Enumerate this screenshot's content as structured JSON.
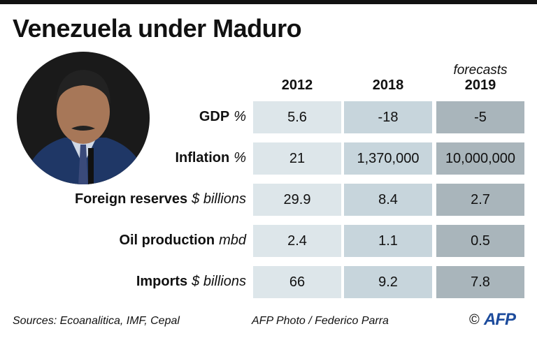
{
  "title": "Venezuela under Maduro",
  "table": {
    "note": "forecasts",
    "columns": [
      "2012",
      "2018",
      "2019"
    ],
    "rows": [
      {
        "label": "GDP",
        "unit": "%",
        "values": [
          "5.6",
          "-18",
          "-5"
        ]
      },
      {
        "label": "Inflation",
        "unit": "%",
        "values": [
          "21",
          "1,370,000",
          "10,000,000"
        ]
      },
      {
        "label": "Foreign reserves",
        "unit": "$ billions",
        "values": [
          "29.9",
          "8.4",
          "2.7"
        ]
      },
      {
        "label": "Oil production",
        "unit": "mbd",
        "values": [
          "2.4",
          "1.1",
          "0.5"
        ]
      },
      {
        "label": "Imports",
        "unit": "$ billions",
        "values": [
          "66",
          "9.2",
          "7.8"
        ]
      }
    ]
  },
  "footer": {
    "sources": "Sources: Ecoanalitica, IMF, Cepal",
    "credit": "AFP Photo / Federico Parra",
    "copyright": "©",
    "logo": "AFP"
  }
}
